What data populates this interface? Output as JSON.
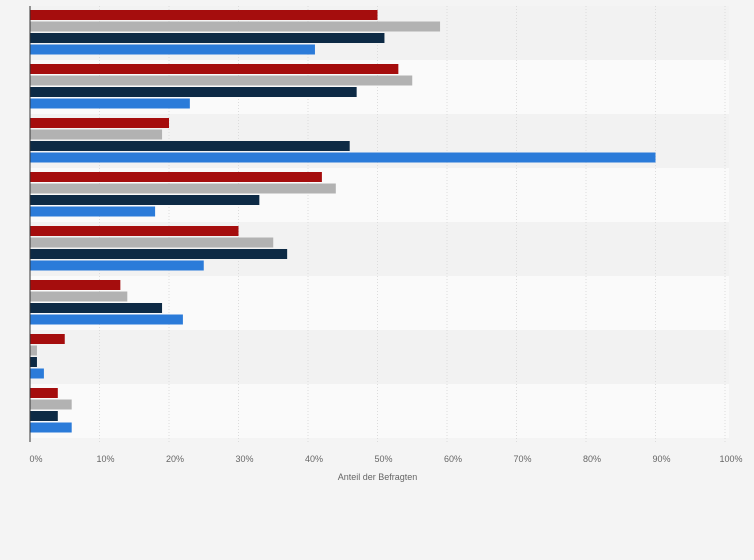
{
  "chart_data": {
    "type": "bar",
    "orientation": "horizontal",
    "categories": [
      "",
      "",
      "",
      "",
      "",
      "",
      "",
      ""
    ],
    "series": [
      {
        "color": "#a50d0d",
        "values": [
          50,
          53,
          20,
          42,
          30,
          13,
          5,
          4
        ]
      },
      {
        "color": "#b2b2b2",
        "values": [
          59,
          55,
          19,
          44,
          35,
          14,
          1,
          6
        ]
      },
      {
        "color": "#0d2a45",
        "values": [
          51,
          47,
          46,
          33,
          37,
          19,
          1,
          4
        ]
      },
      {
        "color": "#2b7bd9",
        "values": [
          41,
          23,
          90,
          18,
          25,
          22,
          2,
          6
        ]
      }
    ],
    "xlabel": "Anteil der Befragten",
    "xlim": [
      0,
      100
    ],
    "xticks": [
      "0%",
      "10%",
      "20%",
      "30%",
      "40%",
      "50%",
      "60%",
      "70%",
      "80%",
      "90%",
      "100%"
    ],
    "grid": true,
    "legend": "none"
  }
}
